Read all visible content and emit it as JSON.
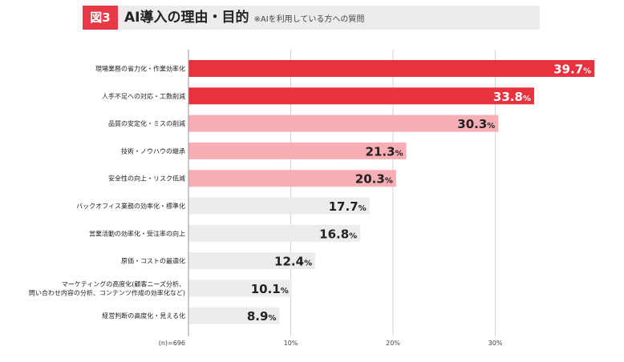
{
  "title": {
    "badge": "図3",
    "main": "AI導入の理由・目的",
    "note": "※AIを利用している方への質問"
  },
  "colors": {
    "strong": "#e8323f",
    "light": "#f7aeb4",
    "neutral": "#ececec",
    "badge": "#e63946"
  },
  "chart_data": {
    "type": "bar",
    "orientation": "horizontal",
    "sample_label": "(n)=696",
    "xlim": [
      0,
      40
    ],
    "ticks": [
      {
        "value": 10,
        "label": "10%"
      },
      {
        "value": 20,
        "label": "20%"
      },
      {
        "value": 30,
        "label": "30%"
      }
    ],
    "unit": "%",
    "categories": [
      [
        "現場業務の省力化・作業効率化"
      ],
      [
        "人手不足への対応・工数削減"
      ],
      [
        "品質の安定化・ミスの削減"
      ],
      [
        "技術・ノウハウの継承"
      ],
      [
        "安全性の向上・リスク低減"
      ],
      [
        "バックオフィス業務の効率化・標準化"
      ],
      [
        "営業活動の効率化・受注率の向上"
      ],
      [
        "原価・コストの最適化"
      ],
      [
        "マーケティングの高度化(顧客ニーズ分析、",
        "問い合わせ内容の分析、コンテンツ作成の効率化など)"
      ],
      [
        "経営判断の高度化・見える化"
      ]
    ],
    "values": [
      39.7,
      33.8,
      30.3,
      21.3,
      20.3,
      17.7,
      16.8,
      12.4,
      10.1,
      8.9
    ],
    "value_labels": [
      "39.7",
      "33.8",
      "30.3",
      "21.3",
      "20.3",
      "17.7",
      "16.8",
      "12.4",
      "10.1",
      "8.9"
    ],
    "tiers": [
      "strong",
      "strong",
      "light",
      "light",
      "light",
      "neutral",
      "neutral",
      "neutral",
      "neutral",
      "neutral"
    ],
    "grid": true
  }
}
